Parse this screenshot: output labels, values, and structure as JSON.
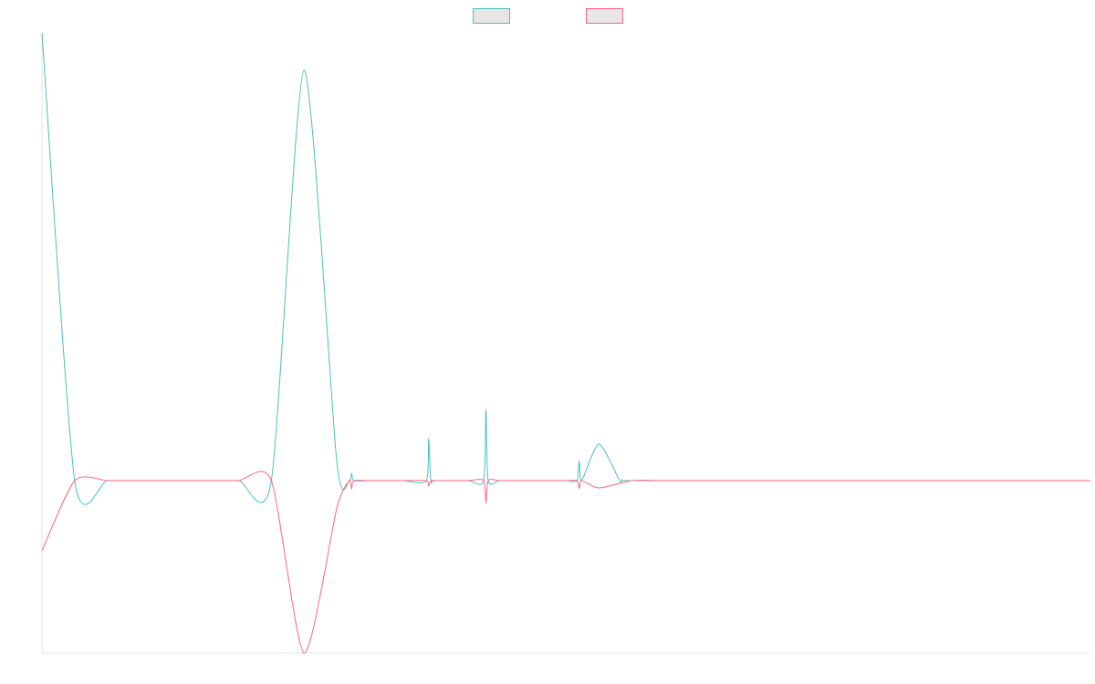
{
  "chart_data": {
    "type": "line",
    "title": "",
    "xlabel": "",
    "ylabel": "",
    "grid": false,
    "legend": {
      "placement": "top-center"
    },
    "x": [
      0,
      1,
      2,
      3,
      4,
      5,
      6,
      7,
      8,
      9,
      10,
      11,
      12,
      13,
      14,
      15,
      16,
      17,
      18,
      19,
      20,
      21,
      22,
      23,
      24,
      25,
      26,
      27,
      28,
      29,
      30,
      31,
      32
    ],
    "xlim": [
      0,
      32
    ],
    "ylim": [
      -189,
      491
    ],
    "series": [
      {
        "name": "",
        "color": "#4bc0c0",
        "fill": "#e6e6e6",
        "values": [
          491,
          0,
          0,
          0,
          0,
          0,
          0,
          0,
          450,
          20,
          0,
          0,
          0,
          0,
          0,
          0,
          0,
          40,
          0,
          0,
          0,
          0,
          0,
          0,
          0,
          0,
          0,
          0,
          0,
          0,
          0,
          0,
          0
        ],
        "spikes": [
          {
            "x": 9.45,
            "y": 8
          },
          {
            "x": 11.8,
            "y": 46
          },
          {
            "x": 13.55,
            "y": 78
          },
          {
            "x": 16.4,
            "y": 22
          },
          {
            "x": 17.7,
            "y": 1
          }
        ]
      },
      {
        "name": "",
        "color": "#ff6384",
        "fill": "#e6e6e6",
        "values": [
          -77,
          0,
          0,
          0,
          0,
          0,
          0,
          0,
          -189,
          -30,
          0,
          0,
          0,
          0,
          0,
          0,
          0,
          -8,
          0,
          0,
          0,
          0,
          0,
          0,
          0,
          0,
          0,
          0,
          0,
          0,
          0,
          0,
          0
        ],
        "spikes": [
          {
            "x": 9.45,
            "y": -9
          },
          {
            "x": 11.8,
            "y": -6
          },
          {
            "x": 13.55,
            "y": -25
          },
          {
            "x": 16.4,
            "y": -9
          }
        ]
      }
    ]
  }
}
